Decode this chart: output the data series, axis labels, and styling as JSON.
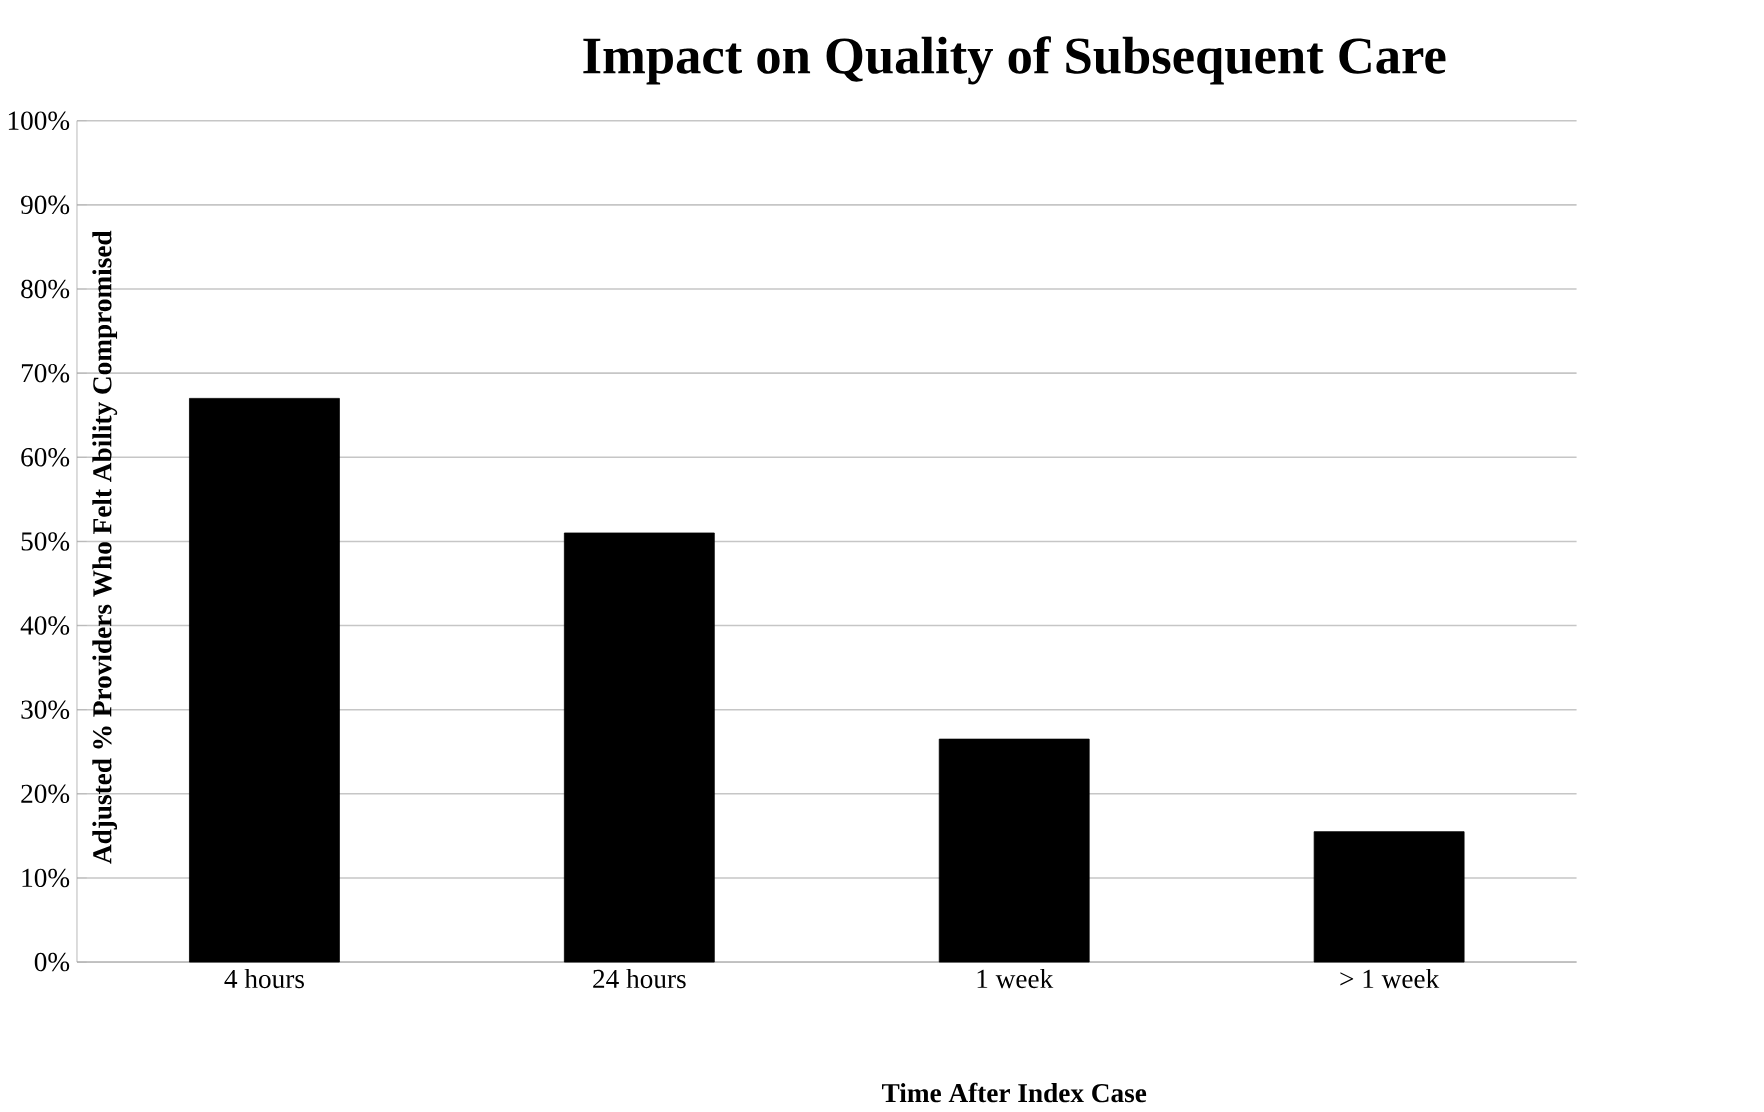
{
  "chart_data": {
    "type": "bar",
    "title": "Impact on Quality of Subsequent Care",
    "xlabel": "Time After Index Case",
    "ylabel": "Adjusted % Providers Who Felt Ability Compromised",
    "categories": [
      "4 hours",
      "24 hours",
      "1 week",
      "> 1 week"
    ],
    "values": [
      67,
      51,
      26.5,
      15.5
    ],
    "color": "#000000",
    "ylim": [
      0,
      100
    ],
    "yticks": [
      {
        "value": 0,
        "label": "0%"
      },
      {
        "value": 10,
        "label": "10%"
      },
      {
        "value": 20,
        "label": "20%"
      },
      {
        "value": 30,
        "label": "30%"
      },
      {
        "value": 40,
        "label": "40%"
      },
      {
        "value": 50,
        "label": "50%"
      },
      {
        "value": 60,
        "label": "60%"
      },
      {
        "value": 70,
        "label": "70%"
      },
      {
        "value": 80,
        "label": "80%"
      },
      {
        "value": 90,
        "label": "90%"
      },
      {
        "value": 100,
        "label": "100%"
      }
    ],
    "grid": "y"
  }
}
